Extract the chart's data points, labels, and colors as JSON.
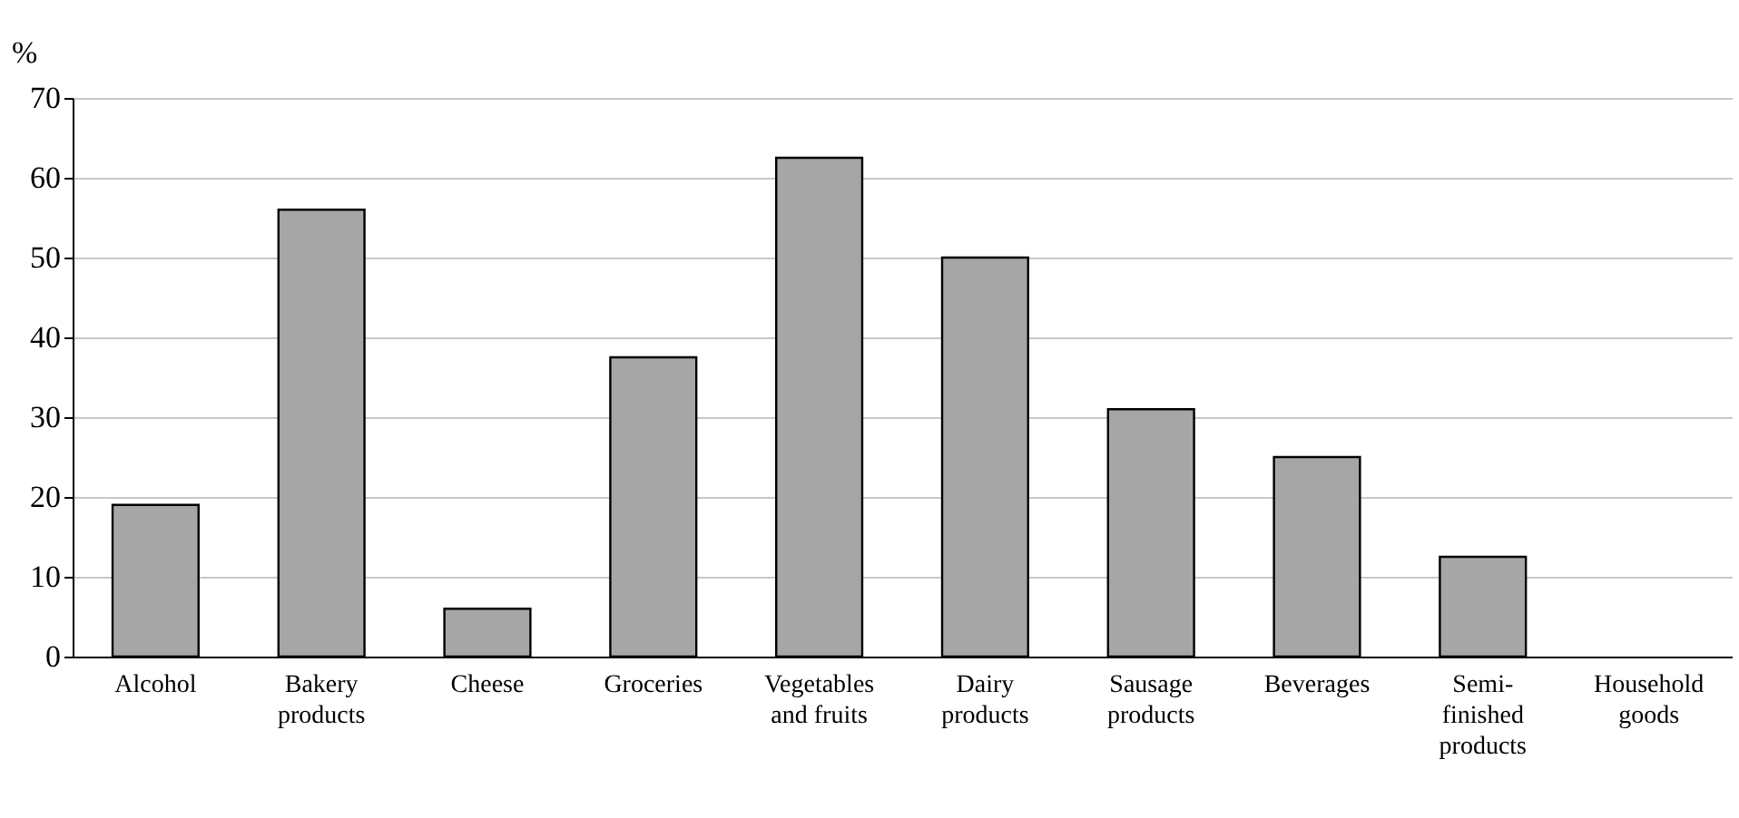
{
  "chart_data": {
    "type": "bar",
    "ylabel": "%",
    "categories": [
      "Alcohol",
      "Bakery\nproducts",
      "Cheese",
      "Groceries",
      "Vegetables\nand fruits",
      "Dairy\nproducts",
      "Sausage\nproducts",
      "Beverages",
      "Semi-\nfinished\nproducts",
      "Household\ngoods"
    ],
    "values": [
      19,
      56,
      6,
      37.5,
      62.5,
      50,
      31,
      25,
      12.5,
      0
    ],
    "color": "#a6a6a6",
    "ylim": [
      0,
      70
    ],
    "yticks": [
      0,
      10,
      20,
      30,
      40,
      50,
      60,
      70
    ],
    "grid": "y"
  }
}
